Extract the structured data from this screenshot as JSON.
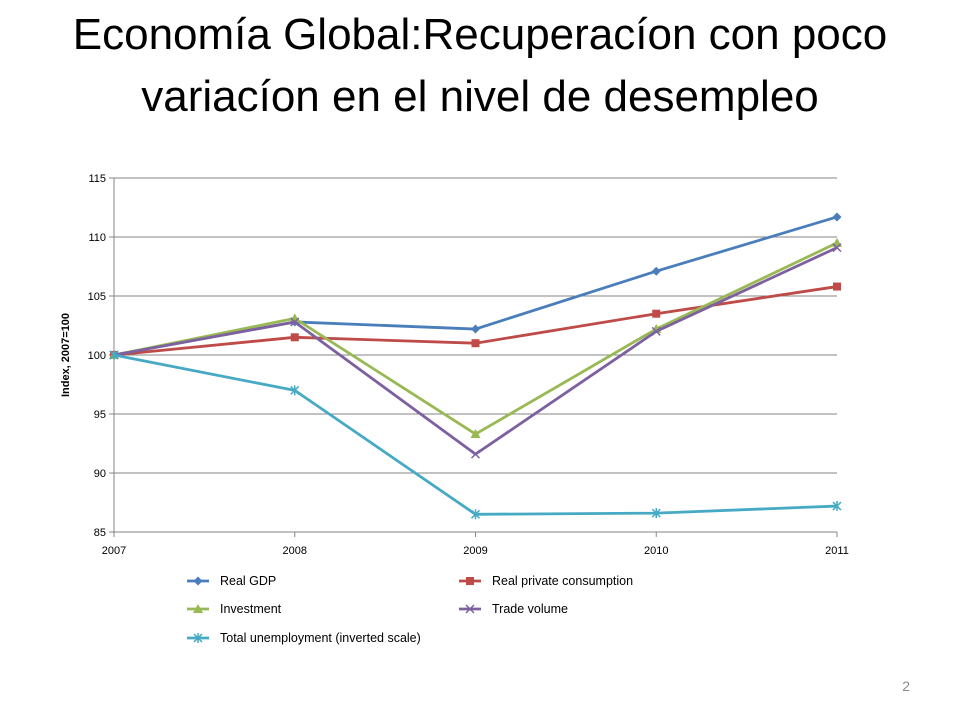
{
  "slide": {
    "title": "Economía Global:Recuperacíon con poco variacíon en el nivel de desempleo",
    "page_number": "2"
  },
  "chart_data": {
    "type": "line",
    "title": "",
    "xlabel": "",
    "ylabel": "Index, 2007=100",
    "x": [
      2007,
      2008,
      2009,
      2010,
      2011
    ],
    "ylim": [
      85,
      115
    ],
    "yticks": [
      85,
      90,
      95,
      100,
      105,
      110,
      115
    ],
    "grid": true,
    "legend_position": "bottom",
    "series": [
      {
        "name": "Real GDP",
        "values": [
          100,
          102.8,
          102.2,
          107.1,
          111.7
        ],
        "color": "#4a7ebb",
        "marker": "diamond"
      },
      {
        "name": "Real private consumption",
        "values": [
          100,
          101.5,
          101.0,
          103.5,
          105.8
        ],
        "color": "#be4b48",
        "marker": "square"
      },
      {
        "name": "Investment",
        "values": [
          100,
          103.1,
          93.3,
          102.2,
          109.5
        ],
        "color": "#98b954",
        "marker": "triangle"
      },
      {
        "name": "Trade volume",
        "values": [
          100,
          102.8,
          91.6,
          102.0,
          109.1
        ],
        "color": "#7d60a0",
        "marker": "x"
      },
      {
        "name": "Total unemployment (inverted scale)",
        "values": [
          100,
          97.0,
          86.5,
          86.6,
          87.2
        ],
        "color": "#46aac5",
        "marker": "star"
      }
    ]
  }
}
